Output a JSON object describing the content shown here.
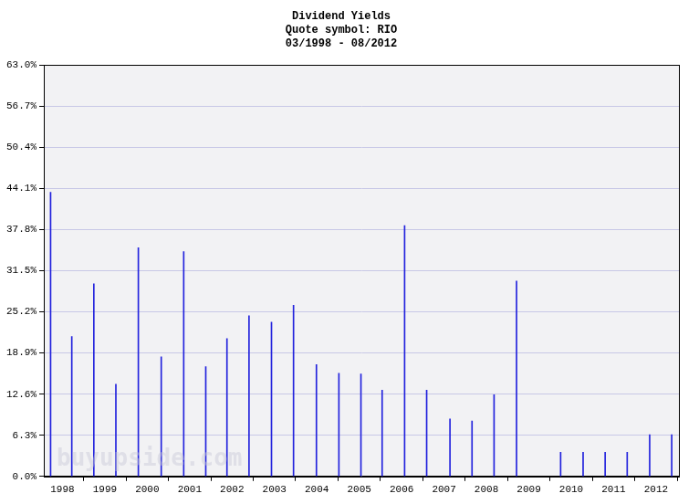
{
  "chart_data": {
    "type": "bar",
    "title": [
      "Dividend Yields",
      "Quote symbol: RIO",
      "03/1998 - 08/2012"
    ],
    "watermark": "buyupside.com",
    "x": [
      1997.72,
      1998.22,
      1998.74,
      1999.26,
      1999.79,
      2000.33,
      2000.86,
      2001.38,
      2001.88,
      2002.4,
      2002.93,
      2003.45,
      2003.99,
      2004.52,
      2005.04,
      2005.54,
      2006.07,
      2006.59,
      2007.14,
      2007.66,
      2008.18,
      2008.71,
      2009.75,
      2010.28,
      2010.8,
      2011.32,
      2011.85,
      2012.37
    ],
    "values": [
      43.5,
      21.4,
      29.5,
      14.1,
      35.0,
      18.3,
      34.4,
      16.8,
      21.1,
      24.6,
      23.6,
      26.2,
      17.1,
      15.8,
      15.7,
      13.2,
      38.4,
      13.2,
      8.8,
      8.5,
      12.5,
      29.9,
      3.7,
      3.7,
      3.7,
      3.7,
      6.4,
      6.4
    ],
    "color": "#2222dd",
    "xlim": [
      1997.56,
      2012.54
    ],
    "xticks": [
      1998,
      1999,
      2000,
      2001,
      2002,
      2003,
      2004,
      2005,
      2006,
      2007,
      2008,
      2009,
      2010,
      2011,
      2012
    ],
    "ylim": [
      0,
      63
    ],
    "yticks": [
      {
        "value": 0,
        "label": "0.0%"
      },
      {
        "value": 6.3,
        "label": "6.3%"
      },
      {
        "value": 12.6,
        "label": "12.6%"
      },
      {
        "value": 18.9,
        "label": "18.9%"
      },
      {
        "value": 25.2,
        "label": "25.2%"
      },
      {
        "value": 31.5,
        "label": "31.5%"
      },
      {
        "value": 37.8,
        "label": "37.8%"
      },
      {
        "value": 44.1,
        "label": "44.1%"
      },
      {
        "value": 50.4,
        "label": "50.4%"
      },
      {
        "value": 56.7,
        "label": "56.7%"
      },
      {
        "value": 63,
        "label": "63.0%"
      }
    ],
    "grid": true
  }
}
